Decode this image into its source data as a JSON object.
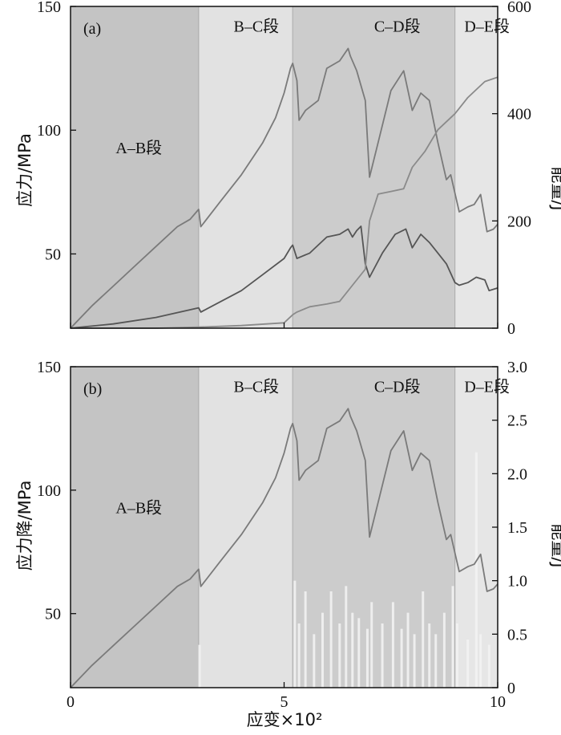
{
  "chart_data": [
    {
      "type": "line",
      "panel_label": "(a)",
      "xlim": [
        0,
        10
      ],
      "ylim_left": [
        20,
        150
      ],
      "ylim_right": [
        0,
        600
      ],
      "yticks_left": [
        "50",
        "100",
        "150"
      ],
      "yticks_right": [
        "0",
        "200",
        "400",
        "600"
      ],
      "ylabel_left": "应力/MPa",
      "ylabel_right": "能量/J",
      "regions": [
        {
          "label": "A–B段",
          "x0": 0,
          "x1": 3.0,
          "color": "#c4c4c4",
          "label_x": 1.6,
          "label_y": 93
        },
        {
          "label": "B–C段",
          "x0": 3.0,
          "x1": 5.2,
          "color": "#e2e2e2",
          "label_x": 4.35,
          "label_y": 142
        },
        {
          "label": "C–D段",
          "x0": 5.2,
          "x1": 9.0,
          "color": "#cccccc",
          "label_x": 7.65,
          "label_y": 142
        },
        {
          "label": "D–E段",
          "x0": 9.0,
          "x1": 10.0,
          "color": "#e6e6e6",
          "label_x": 9.75,
          "label_y": 142
        }
      ],
      "series": [
        {
          "axis": "left",
          "color": "#7a7a7a",
          "x": [
            0,
            0.5,
            1.0,
            1.5,
            2.0,
            2.5,
            2.8,
            3.0,
            3.05,
            3.5,
            4.0,
            4.5,
            4.8,
            5.0,
            5.15,
            5.2,
            5.3,
            5.35,
            5.5,
            5.8,
            6.0,
            6.3,
            6.5,
            6.55,
            6.7,
            6.9,
            7.0,
            7.2,
            7.5,
            7.8,
            8.0,
            8.2,
            8.4,
            8.6,
            8.8,
            8.9,
            9.1,
            9.3,
            9.45,
            9.6,
            9.75,
            9.9,
            10.0
          ],
          "y": [
            20,
            29,
            37,
            45,
            53,
            61,
            64,
            68,
            61,
            71,
            82,
            95,
            105,
            115,
            125,
            127,
            120,
            104,
            108,
            112,
            125,
            128,
            133,
            130,
            124,
            112,
            81,
            95,
            116,
            124,
            108,
            115,
            112,
            95,
            80,
            82,
            67,
            69,
            70,
            74,
            59,
            60,
            62
          ]
        },
        {
          "axis": "right",
          "color": "#555555",
          "x": [
            0,
            1.0,
            2.0,
            3.0,
            3.05,
            4.0,
            4.5,
            5.0,
            5.15,
            5.2,
            5.3,
            5.6,
            5.8,
            6.0,
            6.3,
            6.5,
            6.6,
            6.7,
            6.8,
            6.9,
            7.0,
            7.3,
            7.6,
            7.85,
            8.0,
            8.2,
            8.4,
            8.6,
            8.8,
            9.0,
            9.1,
            9.3,
            9.5,
            9.7,
            9.8,
            10.0
          ],
          "y": [
            0,
            8,
            20,
            38,
            30,
            70,
            100,
            130,
            150,
            155,
            130,
            140,
            155,
            170,
            175,
            185,
            170,
            182,
            190,
            120,
            95,
            140,
            175,
            185,
            150,
            175,
            160,
            140,
            120,
            85,
            80,
            85,
            95,
            90,
            70,
            75
          ]
        },
        {
          "axis": "right",
          "color": "#8a8a8a",
          "x": [
            0,
            2.0,
            3.0,
            4.0,
            5.0,
            5.2,
            5.3,
            5.6,
            6.0,
            6.3,
            6.6,
            6.9,
            7.0,
            7.2,
            7.5,
            7.8,
            8.0,
            8.3,
            8.6,
            8.8,
            9.0,
            9.3,
            9.5,
            9.7,
            10.0
          ],
          "y": [
            0,
            0,
            2,
            5,
            10,
            25,
            30,
            40,
            45,
            50,
            80,
            110,
            200,
            250,
            255,
            260,
            300,
            330,
            370,
            385,
            400,
            430,
            445,
            460,
            468
          ]
        }
      ]
    },
    {
      "type": "line",
      "panel_label": "(b)",
      "xlim": [
        0,
        10
      ],
      "ylim_left": [
        20,
        150
      ],
      "ylim_right": [
        0,
        3.0
      ],
      "xticks": [
        "0",
        "5",
        "10"
      ],
      "yticks_left": [
        "50",
        "100",
        "150"
      ],
      "yticks_right": [
        "0",
        "0.5",
        "1.0",
        "1.5",
        "2.0",
        "2.5",
        "3.0"
      ],
      "xlabel": "应变×10²",
      "ylabel_left": "应力降/MPa",
      "ylabel_right": "能量/J",
      "regions": [
        {
          "label": "A–B段",
          "x0": 0,
          "x1": 3.0,
          "color": "#c4c4c4",
          "label_x": 1.6,
          "label_y": 93
        },
        {
          "label": "B–C段",
          "x0": 3.0,
          "x1": 5.2,
          "color": "#e2e2e2",
          "label_x": 4.35,
          "label_y": 142
        },
        {
          "label": "C–D段",
          "x0": 5.2,
          "x1": 9.0,
          "color": "#cccccc",
          "label_x": 7.65,
          "label_y": 142
        },
        {
          "label": "D–E段",
          "x0": 9.0,
          "x1": 10.0,
          "color": "#e6e6e6",
          "label_x": 9.75,
          "label_y": 142
        }
      ],
      "series": [
        {
          "axis": "left",
          "color": "#7a7a7a",
          "x": [
            0,
            0.5,
            1.0,
            1.5,
            2.0,
            2.5,
            2.8,
            3.0,
            3.05,
            3.5,
            4.0,
            4.5,
            4.8,
            5.0,
            5.15,
            5.2,
            5.3,
            5.35,
            5.5,
            5.8,
            6.0,
            6.3,
            6.5,
            6.55,
            6.7,
            6.9,
            7.0,
            7.2,
            7.5,
            7.8,
            8.0,
            8.2,
            8.4,
            8.6,
            8.8,
            8.9,
            9.1,
            9.3,
            9.45,
            9.6,
            9.75,
            9.9,
            10.0
          ],
          "y": [
            20,
            29,
            37,
            45,
            53,
            61,
            64,
            68,
            61,
            71,
            82,
            95,
            105,
            115,
            125,
            127,
            120,
            104,
            108,
            112,
            125,
            128,
            133,
            130,
            124,
            112,
            81,
            95,
            116,
            124,
            108,
            115,
            112,
            95,
            80,
            82,
            67,
            69,
            70,
            74,
            59,
            60,
            62
          ]
        }
      ],
      "bars": {
        "axis": "right",
        "color": "#f2f2f2",
        "x": [
          3.02,
          5.25,
          5.35,
          5.5,
          5.7,
          5.9,
          6.1,
          6.3,
          6.45,
          6.6,
          6.75,
          6.95,
          7.05,
          7.3,
          7.55,
          7.75,
          7.9,
          8.05,
          8.25,
          8.4,
          8.55,
          8.75,
          8.95,
          9.05,
          9.3,
          9.5,
          9.6,
          9.8
        ],
        "y": [
          0.4,
          1.0,
          0.6,
          0.9,
          0.5,
          0.7,
          0.9,
          0.6,
          0.95,
          0.7,
          0.65,
          0.55,
          0.8,
          0.6,
          0.8,
          0.55,
          0.7,
          0.5,
          0.9,
          0.6,
          0.5,
          0.7,
          0.95,
          0.6,
          0.45,
          2.2,
          0.5,
          0.4
        ]
      }
    }
  ]
}
